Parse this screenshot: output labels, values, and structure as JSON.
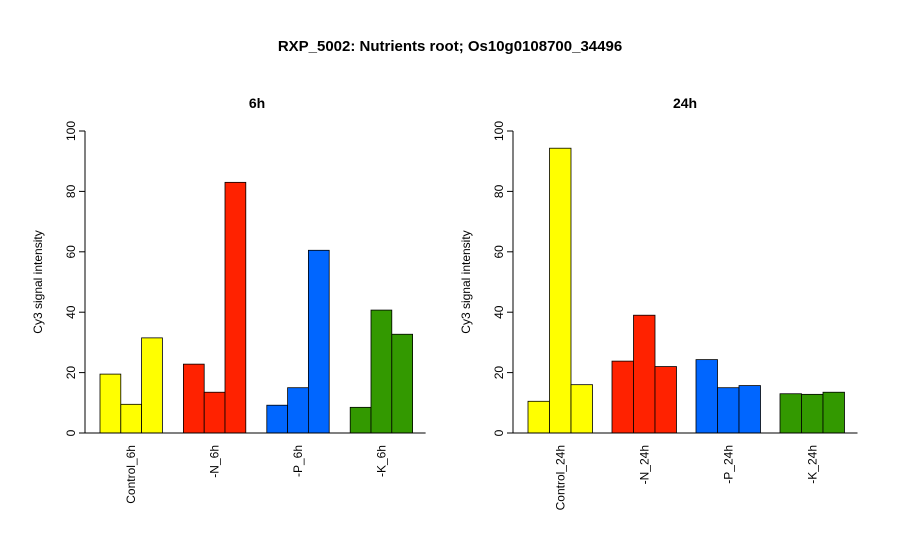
{
  "title": "RXP_5002: Nutrients root; Os10g0108700_34496",
  "chart_data": [
    {
      "type": "bar",
      "title": "6h",
      "ylabel": "Cy3 signal intensity",
      "ylim": [
        0,
        100
      ],
      "yticks": [
        0,
        20,
        40,
        60,
        80,
        100
      ],
      "groups": [
        {
          "label": "Control_6h",
          "color": "#ffff00",
          "values": [
            19.5,
            9.5,
            31.5
          ]
        },
        {
          "label": "-N_6h",
          "color": "#ff2200",
          "values": [
            22.8,
            13.5,
            83
          ]
        },
        {
          "label": "-P_6h",
          "color": "#0066ff",
          "values": [
            9.2,
            15,
            60.5
          ]
        },
        {
          "label": "-K_6h",
          "color": "#339900",
          "values": [
            8.5,
            40.7,
            32.7
          ]
        }
      ]
    },
    {
      "type": "bar",
      "title": "24h",
      "ylabel": "Cy3 signal intensity",
      "ylim": [
        0,
        100
      ],
      "yticks": [
        0,
        20,
        40,
        60,
        80,
        100
      ],
      "groups": [
        {
          "label": "Control_24h",
          "color": "#ffff00",
          "values": [
            10.5,
            94.3,
            16
          ]
        },
        {
          "label": "-N_24h",
          "color": "#ff2200",
          "values": [
            23.8,
            39,
            22
          ]
        },
        {
          "label": "-P_24h",
          "color": "#0066ff",
          "values": [
            24.3,
            15,
            15.7
          ]
        },
        {
          "label": "-K_24h",
          "color": "#339900",
          "values": [
            13,
            12.8,
            13.5
          ]
        }
      ]
    }
  ]
}
